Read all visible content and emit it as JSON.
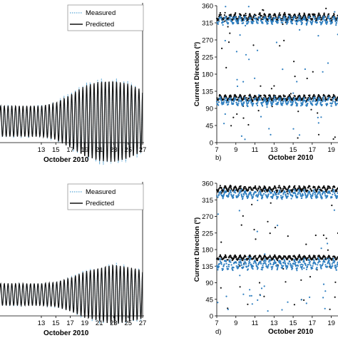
{
  "chart_data": [
    {
      "id": "a",
      "type": "line",
      "panel_label": "",
      "xlabel": "October 2010",
      "ylabel": "",
      "xlim": [
        6.3,
        27
      ],
      "x_ticks": [
        "13",
        "15",
        "17",
        "19",
        "21",
        "23",
        "25",
        "27"
      ],
      "x_tick_values": [
        13,
        15,
        17,
        19,
        21,
        23,
        25,
        27
      ],
      "legend_position": "top-right",
      "series": [
        {
          "name": "Measured",
          "color": "#5ba8d6",
          "style": "dotted"
        },
        {
          "name": "Predicted",
          "color": "#111111",
          "style": "solid"
        }
      ],
      "amplitude_envelope": {
        "x": [
          13,
          15,
          17,
          19,
          21,
          23,
          25,
          27
        ],
        "rel_amplitude": [
          0.35,
          0.42,
          0.6,
          0.8,
          0.9,
          0.92,
          0.85,
          0.7
        ]
      }
    },
    {
      "id": "b",
      "type": "scatter",
      "panel_label": "b)",
      "xlabel": "October 2010",
      "ylabel": "Current Direction (º)",
      "xlim": [
        7,
        19.7
      ],
      "ylim": [
        0,
        360
      ],
      "x_ticks": [
        "7",
        "9",
        "11",
        "13",
        "15",
        "17",
        "19"
      ],
      "x_tick_values": [
        7,
        9,
        11,
        13,
        15,
        17,
        19
      ],
      "y_ticks": [
        "0",
        "45",
        "90",
        "135",
        "180",
        "225",
        "270",
        "315",
        "360"
      ],
      "y_tick_values": [
        0,
        45,
        90,
        135,
        180,
        225,
        270,
        315,
        360
      ],
      "series": [
        {
          "color": "#111111",
          "bands": [
            {
              "center": 330,
              "spread": 12
            },
            {
              "center": 118,
              "spread": 10
            }
          ]
        },
        {
          "color": "#2f7fc0",
          "bands": [
            {
              "center": 322,
              "spread": 14
            },
            {
              "center": 108,
              "spread": 14
            }
          ]
        }
      ]
    },
    {
      "id": "c",
      "type": "line",
      "panel_label": "",
      "xlabel": "October 2010",
      "ylabel": "",
      "xlim": [
        6.3,
        27
      ],
      "x_ticks": [
        "13",
        "15",
        "17",
        "19",
        "21",
        "23",
        "25",
        "27"
      ],
      "x_tick_values": [
        13,
        15,
        17,
        19,
        21,
        23,
        25,
        27
      ],
      "legend_position": "top-right",
      "series": [
        {
          "name": "Measured",
          "color": "#5ba8d6",
          "style": "dotted"
        },
        {
          "name": "Predicted",
          "color": "#111111",
          "style": "solid"
        }
      ],
      "amplitude_envelope": {
        "x": [
          13,
          15,
          17,
          19,
          21,
          23,
          25,
          27
        ],
        "rel_amplitude": [
          0.25,
          0.28,
          0.38,
          0.52,
          0.6,
          0.68,
          0.62,
          0.55
        ]
      }
    },
    {
      "id": "d",
      "type": "scatter",
      "panel_label": "d)",
      "xlabel": "October 2010",
      "ylabel": "Current Direction (º)",
      "xlim": [
        7,
        19.7
      ],
      "ylim": [
        0,
        360
      ],
      "x_ticks": [
        "7",
        "9",
        "11",
        "13",
        "15",
        "17",
        "19"
      ],
      "x_tick_values": [
        7,
        9,
        11,
        13,
        15,
        17,
        19
      ],
      "y_ticks": [
        "0",
        "45",
        "90",
        "135",
        "180",
        "225",
        "270",
        "315",
        "360"
      ],
      "y_tick_values": [
        0,
        45,
        90,
        135,
        180,
        225,
        270,
        315,
        360
      ],
      "series": [
        {
          "color": "#111111",
          "bands": [
            {
              "center": 345,
              "spread": 10
            },
            {
              "center": 158,
              "spread": 8
            }
          ]
        },
        {
          "color": "#2f7fc0",
          "bands": [
            {
              "center": 330,
              "spread": 14
            },
            {
              "center": 140,
              "spread": 18
            }
          ]
        }
      ]
    }
  ]
}
